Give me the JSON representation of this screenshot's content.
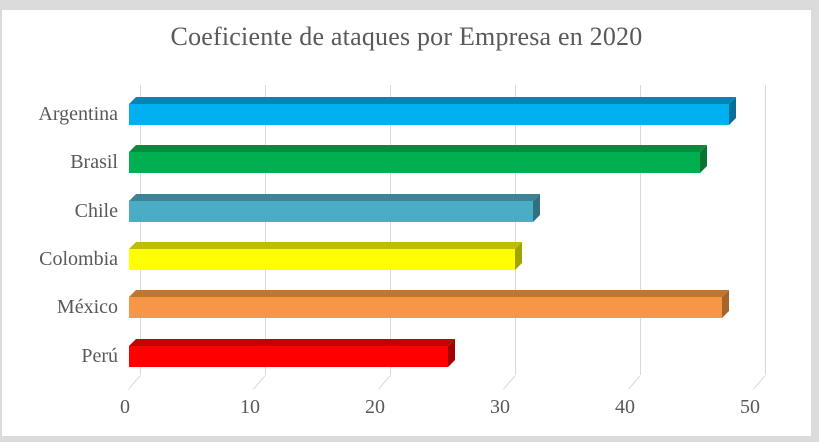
{
  "window": {
    "outer_background": "#DBDBDB",
    "chart_background": "#FFFFFF",
    "text_color": "#595959",
    "gridline_color": "#D9D9D9"
  },
  "chart_data": {
    "type": "bar",
    "orientation": "horizontal",
    "style": "3d",
    "title": "Coeficiente de ataques por Empresa en 2020",
    "categories": [
      "Argentina",
      "Brasil",
      "Chile",
      "Colombia",
      "México",
      "Perú"
    ],
    "values": [
      48.0,
      45.7,
      32.3,
      30.9,
      47.4,
      25.5
    ],
    "xlim": [
      0,
      50
    ],
    "x_ticks": [
      0,
      10,
      20,
      30,
      40,
      50
    ],
    "grid": true,
    "legend": false,
    "xlabel": "",
    "ylabel": "",
    "bar_colors_front": [
      "#00B0F0",
      "#00B050",
      "#4BACC6",
      "#FFFF00",
      "#F79646",
      "#FF0000"
    ],
    "bar_colors_top": [
      "#0A82B4",
      "#0B8A3E",
      "#3B8496",
      "#BEBE00",
      "#C1762F",
      "#C40000"
    ],
    "bar_colors_side": [
      "#076E9A",
      "#087435",
      "#317083",
      "#A3A300",
      "#A5652B",
      "#A00000"
    ]
  }
}
